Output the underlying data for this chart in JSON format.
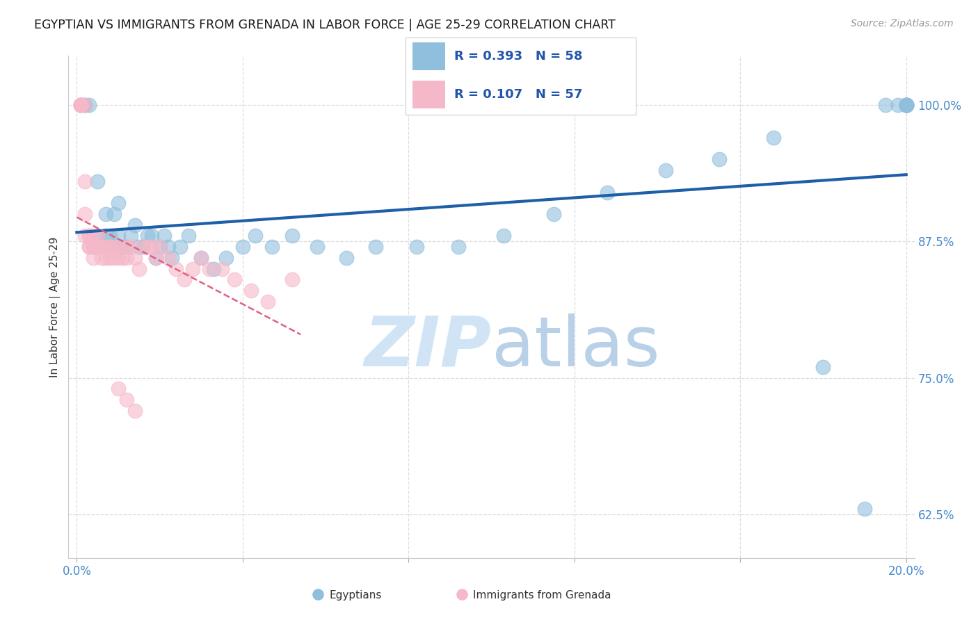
{
  "title": "EGYPTIAN VS IMMIGRANTS FROM GRENADA IN LABOR FORCE | AGE 25-29 CORRELATION CHART",
  "source": "Source: ZipAtlas.com",
  "ylabel": "In Labor Force | Age 25-29",
  "xlim": [
    -0.002,
    0.202
  ],
  "ylim": [
    0.585,
    1.045
  ],
  "yticks": [
    0.625,
    0.75,
    0.875,
    1.0
  ],
  "ytick_labels": [
    "62.5%",
    "75.0%",
    "87.5%",
    "100.0%"
  ],
  "xticks": [
    0.0,
    0.04,
    0.08,
    0.12,
    0.16,
    0.2
  ],
  "xtick_labels": [
    "0.0%",
    "",
    "",
    "",
    "",
    "20.0%"
  ],
  "group1_label": "Egyptians",
  "group2_label": "Immigrants from Grenada",
  "blue_color": "#90bedd",
  "pink_color": "#f5b8c8",
  "blue_line_color": "#1e5fa8",
  "pink_line_color": "#e06080",
  "title_color": "#1a1a1a",
  "source_color": "#999999",
  "axis_label_color": "#333333",
  "tick_color": "#4488cc",
  "watermark_color": "#d0e4f5",
  "background_color": "#ffffff",
  "grid_color": "#dddddd",
  "blue_x": [
    0.001,
    0.002,
    0.002,
    0.003,
    0.004,
    0.005,
    0.005,
    0.006,
    0.007,
    0.007,
    0.008,
    0.009,
    0.009,
    0.01,
    0.01,
    0.011,
    0.012,
    0.013,
    0.014,
    0.015,
    0.016,
    0.017,
    0.018,
    0.019,
    0.02,
    0.021,
    0.022,
    0.023,
    0.025,
    0.027,
    0.03,
    0.033,
    0.036,
    0.04,
    0.043,
    0.047,
    0.052,
    0.058,
    0.065,
    0.072,
    0.082,
    0.092,
    0.103,
    0.115,
    0.128,
    0.142,
    0.155,
    0.168,
    0.18,
    0.19,
    0.195,
    0.198,
    0.2,
    0.2,
    0.2,
    0.2,
    0.2,
    0.2
  ],
  "blue_y": [
    1.0,
    1.0,
    1.0,
    1.0,
    0.87,
    0.93,
    0.88,
    0.87,
    0.9,
    0.88,
    0.88,
    0.87,
    0.9,
    0.88,
    0.91,
    0.87,
    0.87,
    0.88,
    0.89,
    0.87,
    0.87,
    0.88,
    0.88,
    0.86,
    0.87,
    0.88,
    0.87,
    0.86,
    0.87,
    0.88,
    0.86,
    0.85,
    0.86,
    0.87,
    0.88,
    0.87,
    0.88,
    0.87,
    0.86,
    0.87,
    0.87,
    0.87,
    0.88,
    0.9,
    0.92,
    0.94,
    0.95,
    0.97,
    0.76,
    0.63,
    1.0,
    1.0,
    1.0,
    1.0,
    1.0,
    1.0,
    1.0,
    1.0
  ],
  "pink_x": [
    0.001,
    0.001,
    0.001,
    0.001,
    0.001,
    0.002,
    0.002,
    0.002,
    0.002,
    0.003,
    0.003,
    0.003,
    0.003,
    0.004,
    0.004,
    0.004,
    0.004,
    0.005,
    0.005,
    0.005,
    0.006,
    0.006,
    0.006,
    0.007,
    0.007,
    0.008,
    0.008,
    0.008,
    0.009,
    0.009,
    0.01,
    0.01,
    0.011,
    0.012,
    0.012,
    0.013,
    0.014,
    0.015,
    0.016,
    0.017,
    0.018,
    0.019,
    0.02,
    0.022,
    0.024,
    0.026,
    0.028,
    0.03,
    0.032,
    0.035,
    0.038,
    0.042,
    0.046,
    0.052,
    0.01,
    0.012,
    0.014
  ],
  "pink_y": [
    1.0,
    1.0,
    1.0,
    1.0,
    1.0,
    1.0,
    0.93,
    0.9,
    0.88,
    0.88,
    0.87,
    0.87,
    0.88,
    0.87,
    0.86,
    0.87,
    0.88,
    0.87,
    0.87,
    0.88,
    0.87,
    0.86,
    0.87,
    0.87,
    0.86,
    0.87,
    0.86,
    0.87,
    0.86,
    0.87,
    0.86,
    0.87,
    0.86,
    0.87,
    0.86,
    0.87,
    0.86,
    0.85,
    0.87,
    0.87,
    0.87,
    0.86,
    0.87,
    0.86,
    0.85,
    0.84,
    0.85,
    0.86,
    0.85,
    0.85,
    0.84,
    0.83,
    0.82,
    0.84,
    0.74,
    0.73,
    0.72
  ]
}
